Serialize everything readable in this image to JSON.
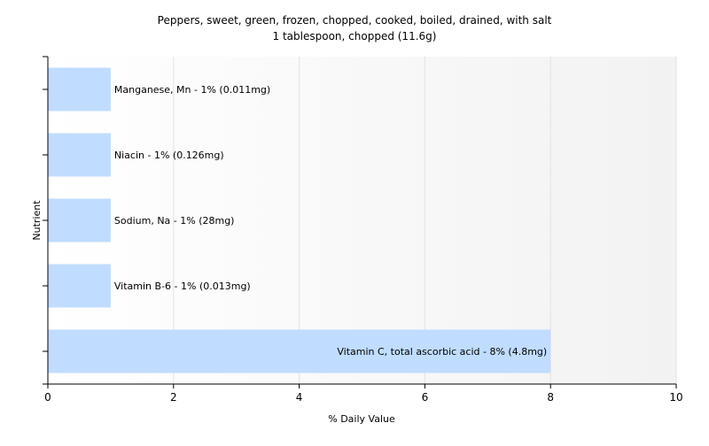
{
  "chart_data": {
    "type": "bar",
    "orientation": "horizontal",
    "title": "Peppers, sweet, green, frozen, chopped, cooked, boiled, drained, with salt",
    "subtitle": "1 tablespoon, chopped (11.6g)",
    "xlabel": "% Daily Value",
    "ylabel": "Nutrient",
    "xlim": [
      0,
      10
    ],
    "xticks": [
      "0",
      "2",
      "4",
      "6",
      "8",
      "10"
    ],
    "grid": true,
    "bar_color": "#c0dcff",
    "categories": [
      "Manganese, Mn",
      "Niacin",
      "Sodium, Na",
      "Vitamin B-6",
      "Vitamin C, total ascorbic acid"
    ],
    "values": [
      1,
      1,
      1,
      1,
      8
    ],
    "labels": [
      "Manganese, Mn - 1% (0.011mg)",
      "Niacin - 1% (0.126mg)",
      "Sodium, Na - 1% (28mg)",
      "Vitamin B-6 - 1% (0.013mg)",
      "Vitamin C, total ascorbic acid - 8% (4.8mg)"
    ]
  }
}
